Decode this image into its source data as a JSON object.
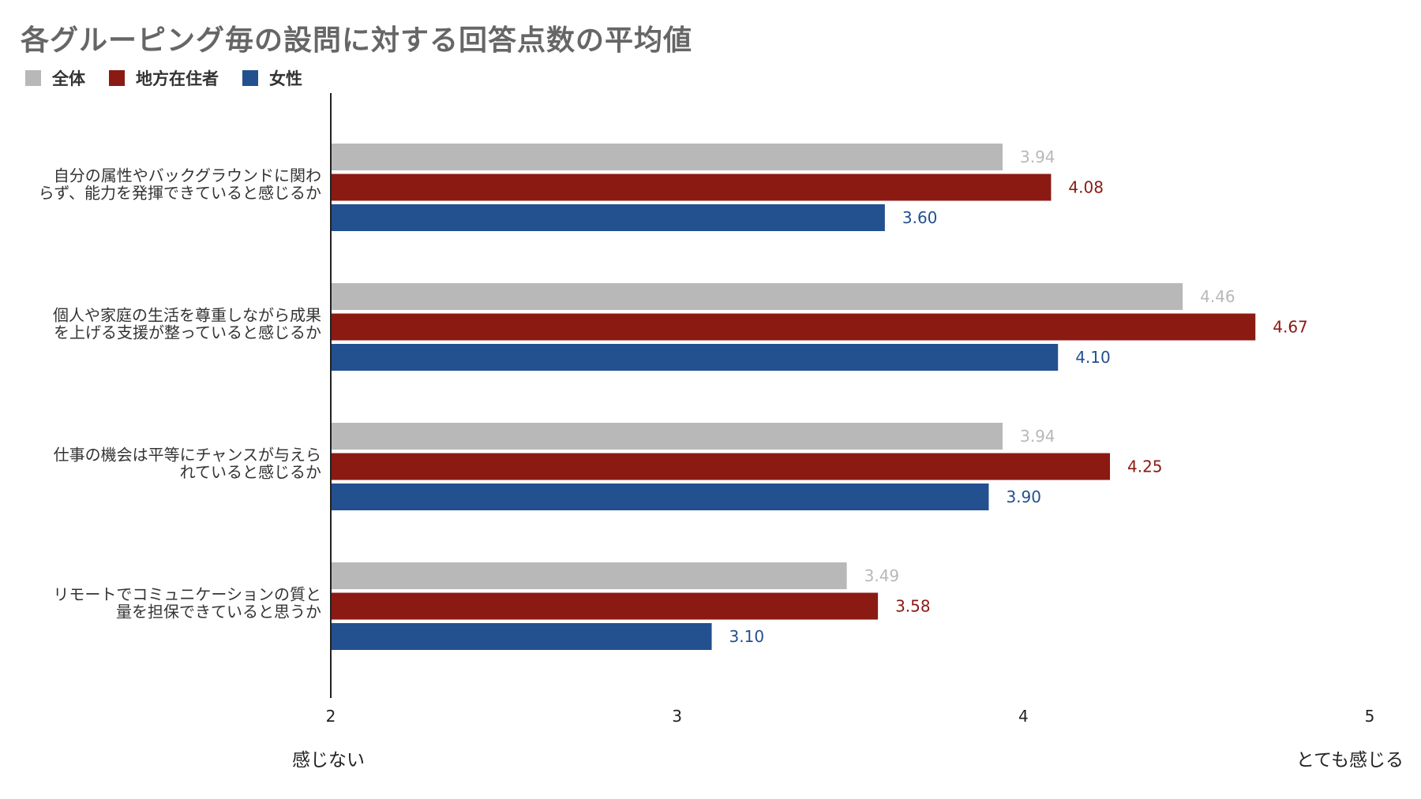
{
  "colors": {
    "all": "#b8b8b8",
    "regional": "#8b1a13",
    "female": "#23508f",
    "title": "#666666",
    "axis": "#222222"
  },
  "legend": [
    {
      "label": "全体",
      "color": "#b8b8b8"
    },
    {
      "label": "地方在住者",
      "color": "#8b1a13"
    },
    {
      "label": "女性",
      "color": "#23508f"
    }
  ],
  "axis_ends": {
    "left": "感じない",
    "right": "とても感じる"
  },
  "chart_data": {
    "type": "bar",
    "orientation": "horizontal",
    "title": "各グルーピング毎の設問に対する回答点数の平均値",
    "categories": [
      [
        "自分の属性やバックグラウンドに関わ",
        "らず、能力を発揮できていると感じるか"
      ],
      [
        "個人や家庭の生活を尊重しながら成果",
        "を上げる支援が整っていると感じるか"
      ],
      [
        "仕事の機会は平等にチャンスが与えら",
        "れていると感じるか"
      ],
      [
        "リモートでコミュニケーションの質と",
        "量を担保できていると思うか"
      ]
    ],
    "series": [
      {
        "name": "全体",
        "color": "#b8b8b8",
        "values": [
          3.94,
          4.46,
          3.94,
          3.49
        ],
        "labels": [
          "3.94",
          "4.46",
          "3.94",
          "3.49"
        ]
      },
      {
        "name": "地方在住者",
        "color": "#8b1a13",
        "values": [
          4.08,
          4.67,
          4.25,
          3.58
        ],
        "labels": [
          "4.08",
          "4.67",
          "4.25",
          "3.58"
        ]
      },
      {
        "name": "女性",
        "color": "#23508f",
        "values": [
          3.6,
          4.1,
          3.9,
          3.1
        ],
        "labels": [
          "3.60",
          "4.10",
          "3.90",
          "3.10"
        ]
      }
    ],
    "xlim": [
      2,
      5
    ],
    "xticks": [
      "2",
      "3",
      "4",
      "5"
    ],
    "grid": false,
    "legend_position": "top-left"
  }
}
